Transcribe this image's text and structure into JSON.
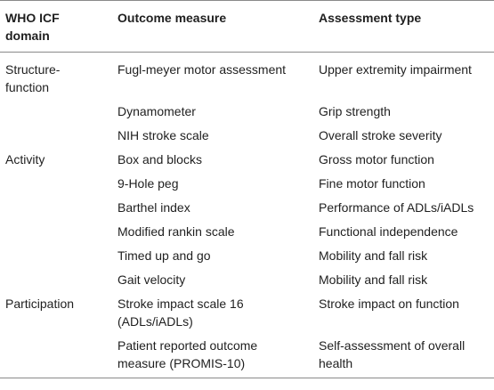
{
  "headers": {
    "domain": "WHO ICF domain",
    "outcome": "Outcome measure",
    "assessment": "Assessment type"
  },
  "rows": [
    {
      "domain": "Structure-function",
      "outcome": "Fugl-meyer motor assessment",
      "assessment": "Upper extremity impairment"
    },
    {
      "domain": "",
      "outcome": "Dynamometer",
      "assessment": "Grip strength"
    },
    {
      "domain": "",
      "outcome": "NIH stroke scale",
      "assessment": "Overall stroke severity"
    },
    {
      "domain": "Activity",
      "outcome": "Box and blocks",
      "assessment": "Gross motor function"
    },
    {
      "domain": "",
      "outcome": "9-Hole peg",
      "assessment": "Fine motor function"
    },
    {
      "domain": "",
      "outcome": "Barthel index",
      "assessment": "Performance of ADLs/iADLs"
    },
    {
      "domain": "",
      "outcome": "Modified rankin scale",
      "assessment": "Functional independence"
    },
    {
      "domain": "",
      "outcome": "Timed up and go",
      "assessment": "Mobility and fall risk"
    },
    {
      "domain": "",
      "outcome": "Gait velocity",
      "assessment": "Mobility and fall risk"
    },
    {
      "domain": "Participation",
      "outcome": "Stroke impact scale 16 (ADLs/iADLs)",
      "assessment": "Stroke impact on function"
    },
    {
      "domain": "",
      "outcome": "Patient reported outcome measure (PROMIS-10)",
      "assessment": "Self-assessment of overall health"
    }
  ]
}
